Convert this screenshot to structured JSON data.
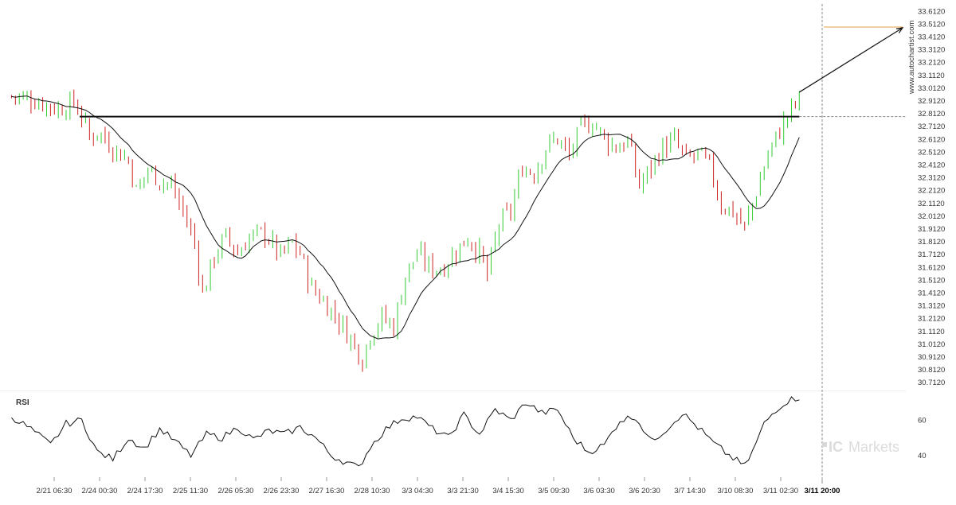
{
  "watermark": {
    "site": "www.autochartist.com",
    "brand_prefix": "IC",
    "brand_suffix": "Markets"
  },
  "chart_data": {
    "type": "candlestick",
    "price_axis": {
      "ticks": [
        "33.6120",
        "33.5120",
        "33.4120",
        "33.3120",
        "33.2120",
        "33.1120",
        "33.0120",
        "32.9120",
        "32.8120",
        "32.7120",
        "32.6120",
        "32.5120",
        "32.4120",
        "32.3120",
        "32.2120",
        "32.1120",
        "32.0120",
        "31.9120",
        "31.8120",
        "31.7120",
        "31.6120",
        "31.5120",
        "31.4120",
        "31.3120",
        "31.2120",
        "31.1120",
        "31.0120",
        "30.9120",
        "30.8120",
        "30.7120"
      ],
      "ylim": [
        30.67,
        33.67
      ]
    },
    "time_axis": {
      "labels": [
        "2/21 06:30",
        "2/24 00:30",
        "2/24 17:30",
        "2/25 11:30",
        "2/26 05:30",
        "2/26 23:30",
        "2/27 16:30",
        "2/28 10:30",
        "3/3 04:30",
        "3/3 21:30",
        "3/4 15:30",
        "3/5 09:30",
        "3/6 03:30",
        "3/6 20:30",
        "3/7 14:30",
        "3/10 08:30",
        "3/11 02:30",
        "3/11 20:00"
      ],
      "highlighted": "3/11 20:00"
    },
    "key_level": {
      "price": 32.79
    },
    "target_level": {
      "price": 33.49
    },
    "rsi": {
      "label": "RSI",
      "ticks": [
        "60",
        "40"
      ],
      "ylim": [
        30,
        75
      ]
    },
    "price_path": [
      [
        0,
        32.95
      ],
      [
        6,
        32.92
      ],
      [
        12,
        32.85
      ],
      [
        16,
        32.9
      ],
      [
        18,
        32.8
      ],
      [
        20,
        32.62
      ],
      [
        22,
        32.68
      ],
      [
        26,
        32.55
      ],
      [
        30,
        32.45
      ],
      [
        32,
        32.2
      ],
      [
        35,
        32.38
      ],
      [
        38,
        32.3
      ],
      [
        41,
        32.25
      ],
      [
        44,
        32.05
      ],
      [
        47,
        31.8
      ],
      [
        49,
        31.4
      ],
      [
        52,
        31.7
      ],
      [
        55,
        31.85
      ],
      [
        58,
        31.72
      ],
      [
        61,
        31.85
      ],
      [
        65,
        31.88
      ],
      [
        69,
        31.7
      ],
      [
        72,
        31.8
      ],
      [
        74,
        31.72
      ],
      [
        77,
        31.45
      ],
      [
        80,
        31.35
      ],
      [
        84,
        31.2
      ],
      [
        87,
        31.05
      ],
      [
        90,
        30.9
      ],
      [
        92,
        31.1
      ],
      [
        95,
        31.22
      ],
      [
        98,
        31.15
      ],
      [
        101,
        31.55
      ],
      [
        104,
        31.72
      ],
      [
        107,
        31.62
      ],
      [
        110,
        31.6
      ],
      [
        113,
        31.7
      ],
      [
        117,
        31.85
      ],
      [
        120,
        31.72
      ],
      [
        122,
        31.55
      ],
      [
        125,
        31.95
      ],
      [
        128,
        32.05
      ],
      [
        131,
        32.4
      ],
      [
        134,
        32.35
      ],
      [
        137,
        32.55
      ],
      [
        140,
        32.62
      ],
      [
        143,
        32.48
      ],
      [
        146,
        32.7
      ],
      [
        149,
        32.75
      ],
      [
        152,
        32.62
      ],
      [
        155,
        32.55
      ],
      [
        158,
        32.6
      ],
      [
        161,
        32.25
      ],
      [
        164,
        32.4
      ],
      [
        167,
        32.55
      ],
      [
        170,
        32.6
      ],
      [
        173,
        32.45
      ],
      [
        176,
        32.5
      ],
      [
        179,
        32.4
      ],
      [
        182,
        32.1
      ],
      [
        185,
        32.05
      ],
      [
        188,
        31.92
      ],
      [
        191,
        32.2
      ],
      [
        194,
        32.5
      ],
      [
        197,
        32.68
      ],
      [
        200,
        32.85
      ],
      [
        202,
        32.92
      ]
    ],
    "rsi_path": [
      [
        0,
        62
      ],
      [
        5,
        55
      ],
      [
        10,
        46
      ],
      [
        14,
        58
      ],
      [
        18,
        60
      ],
      [
        22,
        42
      ],
      [
        26,
        38
      ],
      [
        30,
        50
      ],
      [
        34,
        44
      ],
      [
        38,
        55
      ],
      [
        42,
        48
      ],
      [
        46,
        40
      ],
      [
        50,
        52
      ],
      [
        54,
        50
      ],
      [
        58,
        56
      ],
      [
        62,
        49
      ],
      [
        66,
        54
      ],
      [
        70,
        52
      ],
      [
        74,
        56
      ],
      [
        78,
        50
      ],
      [
        82,
        40
      ],
      [
        86,
        36
      ],
      [
        89,
        33
      ],
      [
        92,
        45
      ],
      [
        96,
        55
      ],
      [
        100,
        61
      ],
      [
        104,
        62
      ],
      [
        108,
        55
      ],
      [
        112,
        50
      ],
      [
        116,
        63
      ],
      [
        120,
        52
      ],
      [
        124,
        66
      ],
      [
        128,
        60
      ],
      [
        132,
        70
      ],
      [
        136,
        64
      ],
      [
        140,
        66
      ],
      [
        144,
        50
      ],
      [
        148,
        42
      ],
      [
        152,
        46
      ],
      [
        156,
        60
      ],
      [
        160,
        62
      ],
      [
        164,
        48
      ],
      [
        168,
        55
      ],
      [
        172,
        64
      ],
      [
        176,
        56
      ],
      [
        180,
        47
      ],
      [
        184,
        40
      ],
      [
        186,
        37
      ],
      [
        188,
        34
      ],
      [
        190,
        42
      ],
      [
        193,
        58
      ],
      [
        196,
        66
      ],
      [
        199,
        71
      ],
      [
        202,
        73
      ]
    ]
  }
}
